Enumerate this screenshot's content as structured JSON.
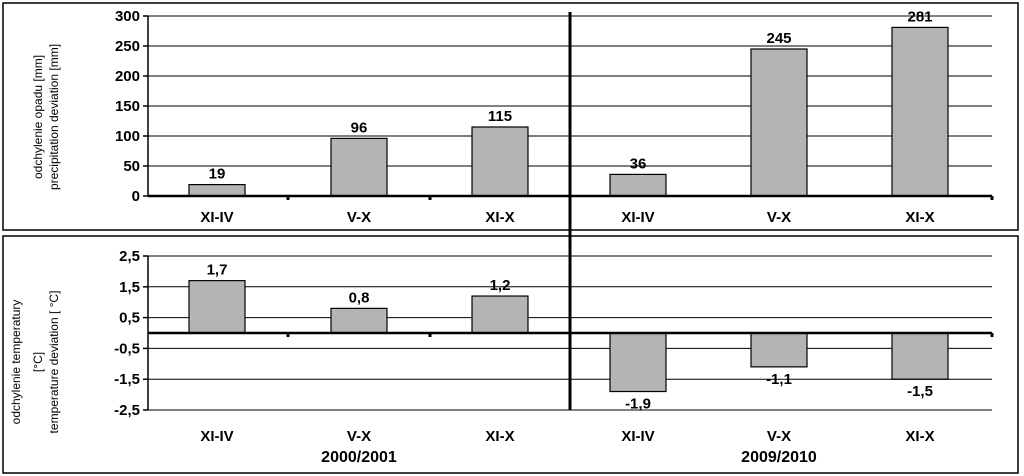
{
  "chart_data": [
    {
      "type": "bar",
      "ylabel": [
        "odchylenie opadu [mm]",
        "precipitation deviation [mm]"
      ],
      "ylim": [
        0,
        300
      ],
      "yticks": [
        "0",
        "50",
        "100",
        "150",
        "200",
        "250",
        "300"
      ],
      "categories": [
        "XI-IV",
        "V-X",
        "XI-X",
        "XI-IV",
        "V-X",
        "XI-X"
      ],
      "values": [
        19,
        96,
        115,
        36,
        245,
        281
      ],
      "data_labels": [
        "19",
        "96",
        "115",
        "36",
        "245",
        "281"
      ],
      "grid": true
    },
    {
      "type": "bar",
      "ylabel": [
        "odchylenie temperatury",
        "[°C]",
        "temperature deviation [ °C]"
      ],
      "ylim": [
        -2.5,
        2.5
      ],
      "yticks": [
        "-2,5",
        "-1,5",
        "-0,5",
        "0,5",
        "1,5",
        "2,5"
      ],
      "categories": [
        "XI-IV",
        "V-X",
        "XI-X",
        "XI-IV",
        "V-X",
        "XI-X"
      ],
      "values": [
        1.7,
        0.8,
        1.2,
        -1.9,
        -1.1,
        -1.5
      ],
      "data_labels": [
        "1,7",
        "0,8",
        "1,2",
        "-1,9",
        "-1,1",
        "-1,5"
      ],
      "grid": true
    }
  ],
  "groups": [
    "2000/2001",
    "2009/2010"
  ],
  "colors": {
    "bar_fill": "#b4b4b4",
    "bar_stroke": "#000000",
    "grid": "#000000"
  }
}
